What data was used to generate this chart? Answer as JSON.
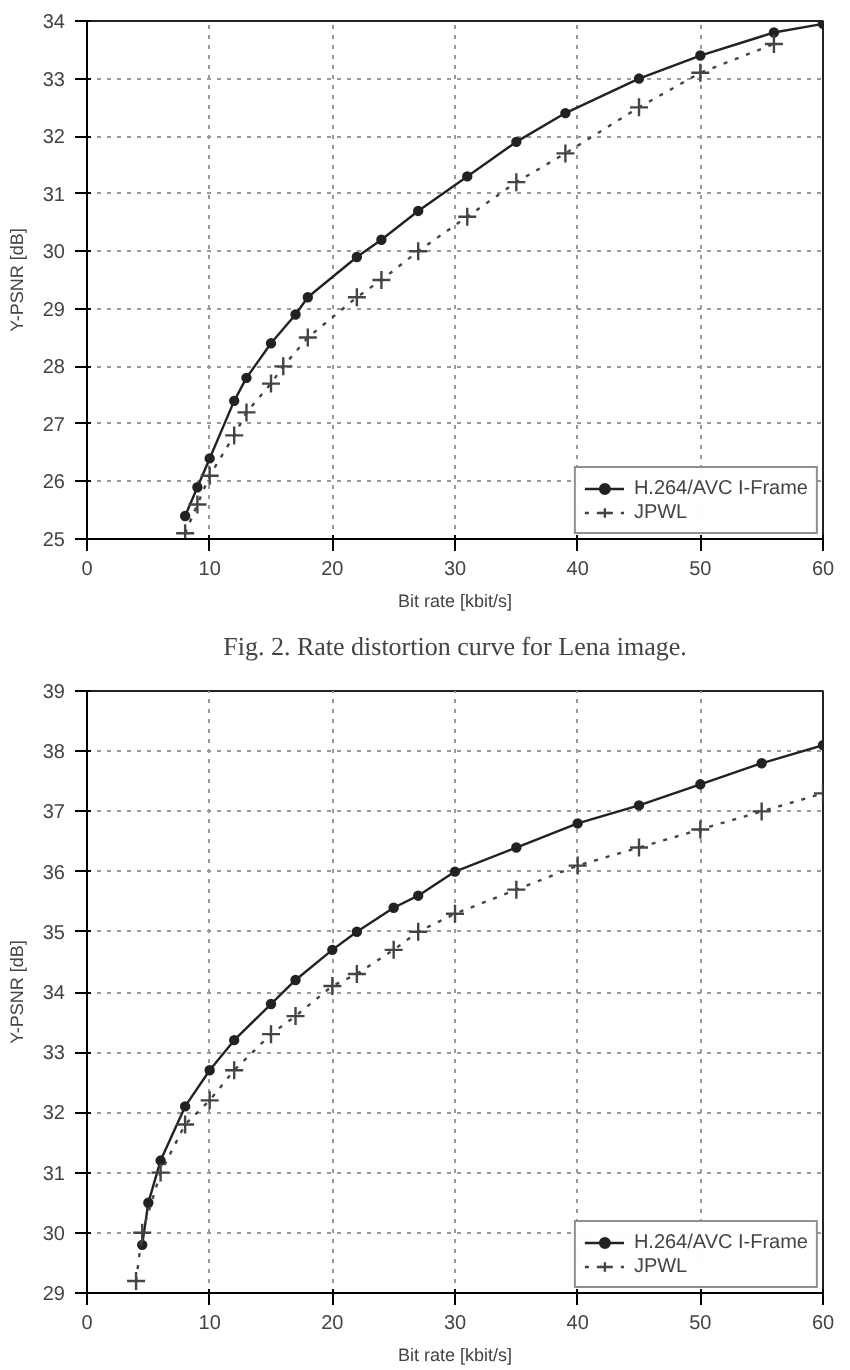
{
  "chart_data": [
    {
      "type": "line",
      "xlabel": "Bit rate [kbit/s]",
      "ylabel": "Y-PSNR [dB]",
      "annotations": [
        "Fig. 2. Rate distortion curve for Lena image."
      ],
      "xlim": [
        0,
        60
      ],
      "ylim": [
        25,
        34
      ],
      "xticks": [
        0,
        10,
        20,
        30,
        40,
        50,
        60
      ],
      "yticks": [
        25,
        26,
        27,
        28,
        29,
        30,
        31,
        32,
        33,
        34
      ],
      "grid": true,
      "legend": "bottom right",
      "series": [
        {
          "name": "H.264/AVC I-Frame",
          "color": "#222222",
          "marker": "circle",
          "line_style": "solid",
          "x": [
            8,
            9,
            10,
            12,
            13,
            15,
            17,
            18,
            22,
            24,
            27,
            31,
            35,
            39,
            45,
            50,
            56,
            60
          ],
          "values": [
            25.4,
            25.9,
            26.4,
            27.4,
            27.8,
            28.4,
            28.9,
            29.2,
            29.9,
            30.2,
            30.7,
            31.3,
            31.9,
            32.4,
            33.0,
            33.4,
            33.8,
            33.95
          ]
        },
        {
          "name": "JPWL",
          "color": "#444444",
          "marker": "cross",
          "line_style": "dotted",
          "x": [
            8,
            9,
            10,
            12,
            13,
            15,
            16,
            18,
            22,
            24,
            27,
            31,
            35,
            39,
            45,
            50,
            56
          ],
          "values": [
            25.1,
            25.6,
            26.1,
            26.8,
            27.2,
            27.7,
            28.0,
            28.5,
            29.2,
            29.5,
            30.0,
            30.6,
            31.2,
            31.7,
            32.5,
            33.1,
            33.6
          ]
        }
      ]
    },
    {
      "type": "line",
      "xlabel": "Bit rate [kbit/s]",
      "ylabel": "Y-PSNR [dB]",
      "xlim": [
        0,
        60
      ],
      "ylim": [
        29,
        39
      ],
      "xticks": [
        0,
        10,
        20,
        30,
        40,
        50,
        60
      ],
      "yticks": [
        29,
        30,
        31,
        32,
        33,
        34,
        35,
        36,
        37,
        38,
        39
      ],
      "grid": true,
      "legend": "bottom right",
      "series": [
        {
          "name": "H.264/AVC I-Frame",
          "color": "#222222",
          "marker": "circle",
          "line_style": "solid",
          "x": [
            4.5,
            5,
            6,
            8,
            10,
            12,
            15,
            17,
            20,
            22,
            25,
            27,
            30,
            35,
            40,
            45,
            50,
            55,
            60
          ],
          "values": [
            29.8,
            30.5,
            31.2,
            32.1,
            32.7,
            33.2,
            33.8,
            34.2,
            34.7,
            35.0,
            35.4,
            35.6,
            36.0,
            36.4,
            36.8,
            37.1,
            37.45,
            37.8,
            38.1
          ]
        },
        {
          "name": "JPWL",
          "color": "#444444",
          "marker": "cross",
          "line_style": "dotted",
          "x": [
            4,
            4.5,
            6,
            8,
            10,
            12,
            15,
            17,
            20,
            22,
            25,
            27,
            30,
            35,
            40,
            45,
            50,
            55,
            60
          ],
          "values": [
            29.2,
            30.0,
            31.0,
            31.8,
            32.2,
            32.7,
            33.3,
            33.6,
            34.1,
            34.3,
            34.7,
            35.0,
            35.3,
            35.7,
            36.1,
            36.4,
            36.7,
            37.0,
            37.3
          ]
        }
      ]
    }
  ]
}
